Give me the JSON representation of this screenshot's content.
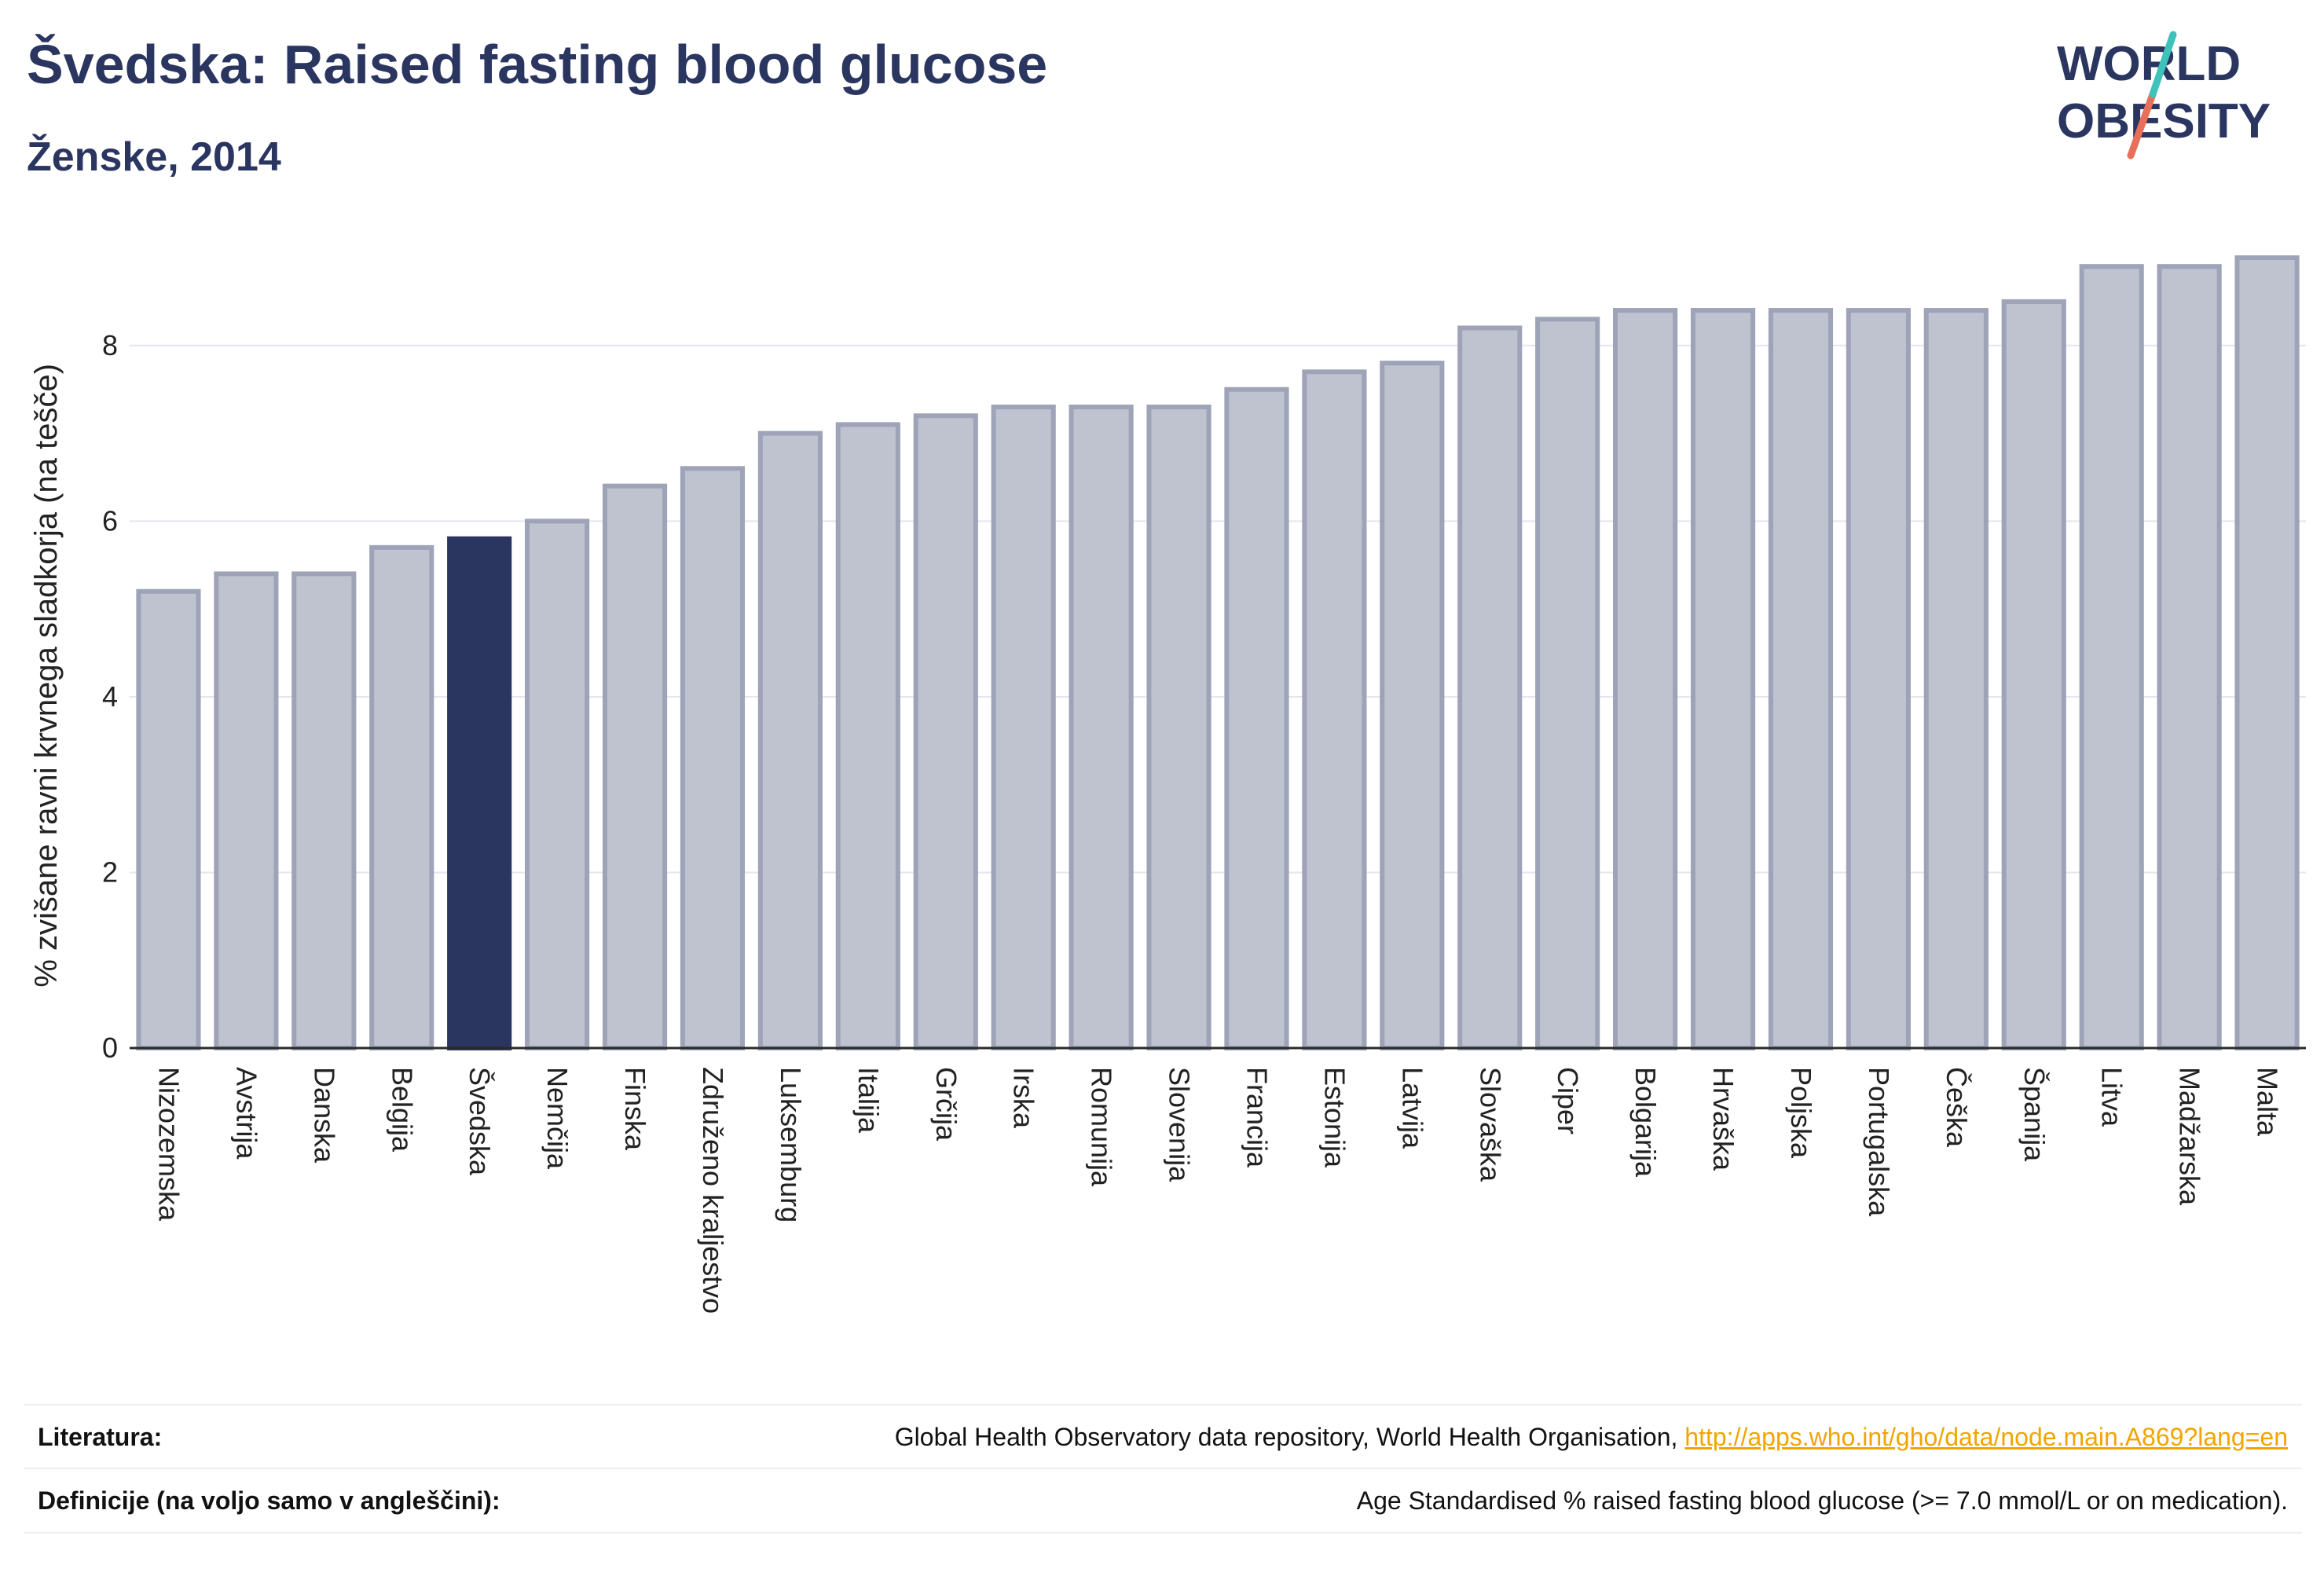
{
  "header": {
    "title": "Švedska: Raised fasting blood glucose",
    "subtitle": "Ženske, 2014"
  },
  "logo": {
    "line1": "WORLD",
    "line2": "OBESITY"
  },
  "colors": {
    "highlight": "#2a3560",
    "bar_fill": "#bfc2cf",
    "bar_stroke": "#9ea3b8",
    "link": "#f0a500"
  },
  "chart_data": {
    "type": "bar",
    "title": "Švedska: Raised fasting blood glucose",
    "subtitle": "Ženske, 2014",
    "xlabel": "",
    "ylabel": "% zvišane ravni krvnega sladkorja (na tešče)",
    "ylim": [
      0,
      9.2
    ],
    "yticks": [
      0,
      2,
      4,
      6,
      8
    ],
    "grid": true,
    "highlight": "Švedska",
    "categories": [
      "Nizozemska",
      "Avstrija",
      "Danska",
      "Belgija",
      "Švedska",
      "Nemčija",
      "Finska",
      "Združeno kraljestvo",
      "Luksemburg",
      "Italija",
      "Grčija",
      "Irska",
      "Romunija",
      "Slovenija",
      "Francija",
      "Estonija",
      "Latvija",
      "Slovaška",
      "Ciper",
      "Bolgarija",
      "Hrvaška",
      "Poljska",
      "Portugalska",
      "Češka",
      "Španija",
      "Litva",
      "Madžarska",
      "Malta"
    ],
    "values": [
      5.2,
      5.4,
      5.4,
      5.7,
      5.8,
      6.0,
      6.4,
      6.6,
      7.0,
      7.1,
      7.2,
      7.3,
      7.3,
      7.3,
      7.5,
      7.7,
      7.8,
      8.2,
      8.3,
      8.4,
      8.4,
      8.4,
      8.4,
      8.4,
      8.5,
      8.9,
      8.9,
      9.0
    ]
  },
  "footer": {
    "literature_label": "Literatura:",
    "literature_text": "Global Health Observatory data repository, World Health Organisation, ",
    "literature_link": "http://apps.who.int/gho/data/node.main.A869?lang=en",
    "definitions_label": "Definicije (na voljo samo v angleščini):",
    "definitions_text": "Age Standardised % raised fasting blood glucose (>= 7.0 mmol/L or on medication)."
  }
}
